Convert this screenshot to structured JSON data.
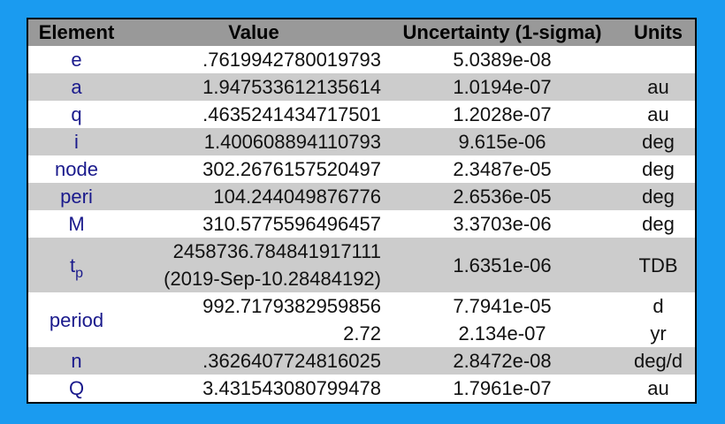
{
  "table": {
    "headers": [
      "Element",
      "Value",
      "Uncertainty (1-sigma)",
      "Units"
    ],
    "rows": [
      {
        "element": "e",
        "value": [
          ".7619942780019793"
        ],
        "uncertainty": [
          "5.0389e-08"
        ],
        "units": []
      },
      {
        "element": "a",
        "value": [
          "1.947533612135614"
        ],
        "uncertainty": [
          "1.0194e-07"
        ],
        "units": [
          "au"
        ]
      },
      {
        "element": "q",
        "value": [
          ".4635241434717501"
        ],
        "uncertainty": [
          "1.2028e-07"
        ],
        "units": [
          "au"
        ]
      },
      {
        "element": "i",
        "value": [
          "1.400608894110793"
        ],
        "uncertainty": [
          "9.615e-06"
        ],
        "units": [
          "deg"
        ]
      },
      {
        "element": "node",
        "value": [
          "302.2676157520497"
        ],
        "uncertainty": [
          "2.3487e-05"
        ],
        "units": [
          "deg"
        ]
      },
      {
        "element": "peri",
        "value": [
          "104.244049876776"
        ],
        "uncertainty": [
          "2.6536e-05"
        ],
        "units": [
          "deg"
        ]
      },
      {
        "element": "M",
        "value": [
          "310.5775596496457"
        ],
        "uncertainty": [
          "3.3703e-06"
        ],
        "units": [
          "deg"
        ]
      },
      {
        "element": "t",
        "element_sub": "p",
        "value": [
          "2458736.784841917111",
          "(2019-Sep-10.28484192)"
        ],
        "uncertainty": [
          "1.6351e-06"
        ],
        "units": [
          "TDB"
        ]
      },
      {
        "element": "period",
        "value": [
          "992.7179382959856",
          "2.72"
        ],
        "uncertainty": [
          "7.7941e-05",
          "2.134e-07"
        ],
        "units": [
          "d",
          "yr"
        ]
      },
      {
        "element": "n",
        "value": [
          ".3626407724816025"
        ],
        "uncertainty": [
          "2.8472e-08"
        ],
        "units": [
          "deg/d"
        ]
      },
      {
        "element": "Q",
        "value": [
          "3.431543080799478"
        ],
        "uncertainty": [
          "1.7961e-07"
        ],
        "units": [
          "au"
        ]
      }
    ]
  }
}
